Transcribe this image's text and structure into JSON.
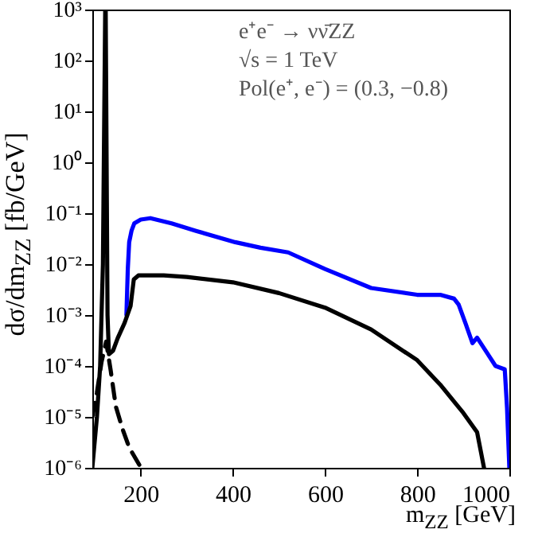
{
  "chart_data": {
    "type": "line",
    "xlabel": "m$_{ZZ}$ [GeV]",
    "ylabel": "dσ/dm$_{ZZ}$ [fb/GeV]",
    "annotations": [
      "e⁺e⁻ → νν̄ZZ",
      "√s = 1 TeV",
      "Pol(e⁺, e⁻) = (0.3, −0.8)"
    ],
    "xlim": [
      95,
      1000
    ],
    "xticks": [
      200,
      400,
      600,
      800,
      1000
    ],
    "ylim": [
      1e-06,
      1000
    ],
    "log": true,
    "yticks": [
      {
        "value": 1e-06,
        "label": "10⁻⁶"
      },
      {
        "value": 1e-05,
        "label": "10⁻⁵"
      },
      {
        "value": 0.0001,
        "label": "10⁻⁴"
      },
      {
        "value": 0.001,
        "label": "10⁻³"
      },
      {
        "value": 0.01,
        "label": "10⁻²"
      },
      {
        "value": 0.1,
        "label": "10⁻¹"
      },
      {
        "value": 1,
        "label": "10⁰"
      },
      {
        "value": 10,
        "label": "10¹"
      },
      {
        "value": 100,
        "label": "10²"
      },
      {
        "value": 1000,
        "label": "10³"
      }
    ],
    "grid": false,
    "marker": "none",
    "series": [
      {
        "color": "#0000ff",
        "line_style": "solid",
        "x": [
          169,
          172,
          175,
          180,
          186,
          200,
          221,
          267,
          320,
          405,
          460,
          520,
          600,
          700,
          800,
          850,
          880,
          890,
          905,
          920,
          930,
          950,
          970,
          990,
          995,
          1000
        ],
        "values": [
          0.001,
          0.008,
          0.027,
          0.045,
          0.063,
          0.075,
          0.08,
          0.063,
          0.045,
          0.027,
          0.021,
          0.017,
          0.008,
          0.0034,
          0.0025,
          0.0025,
          0.0021,
          0.0016,
          0.00068,
          0.00028,
          0.00036,
          0.00019,
          0.0001,
          8.6e-05,
          1.5e-05,
          1e-06
        ]
      },
      {
        "color": "#000000",
        "line_style": "solid",
        "x": [
          95,
          105,
          112,
          118,
          121,
          123,
          124,
          126,
          128,
          131,
          140,
          150,
          165,
          178,
          185,
          195,
          250,
          300,
          400,
          500,
          600,
          700,
          800,
          850,
          900,
          930,
          945
        ],
        "values": [
          1e-06,
          1e-05,
          0.0001,
          0.01,
          10,
          1000,
          1000,
          1,
          0.001,
          0.00017,
          0.0002,
          0.00035,
          0.0007,
          0.0015,
          0.005,
          0.006,
          0.006,
          0.0056,
          0.0044,
          0.0027,
          0.0014,
          0.00052,
          0.00013,
          4.3e-05,
          1.2e-05,
          5e-06,
          1e-06
        ]
      },
      {
        "color": "#000000",
        "line_style": "dashed",
        "x": [
          95,
          105,
          115,
          125,
          135,
          146,
          160,
          175,
          198
        ],
        "values": [
          1e-05,
          3e-05,
          0.00012,
          0.0003,
          8e-05,
          1.6e-05,
          6e-06,
          2.5e-06,
          1.1e-06
        ]
      }
    ]
  }
}
